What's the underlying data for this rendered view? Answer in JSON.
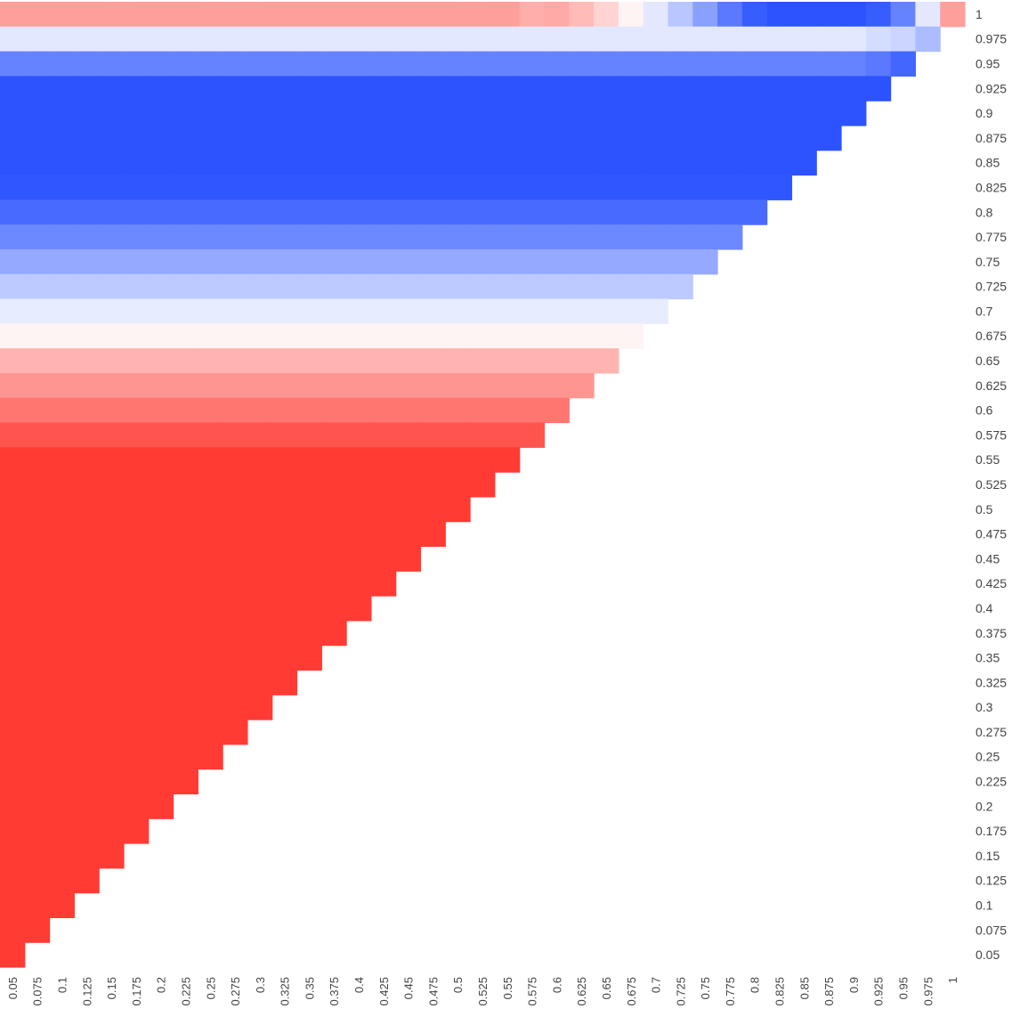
{
  "chart_data": {
    "type": "heatmap",
    "title": "",
    "xlabel": "",
    "ylabel": "",
    "x_ticks": [
      "0.05",
      "0.075",
      "0.1",
      "0.125",
      "0.15",
      "0.175",
      "0.2",
      "0.225",
      "0.25",
      "0.275",
      "0.3",
      "0.325",
      "0.35",
      "0.375",
      "0.4",
      "0.425",
      "0.45",
      "0.475",
      "0.5",
      "0.525",
      "0.55",
      "0.575",
      "0.6",
      "0.625",
      "0.65",
      "0.675",
      "0.7",
      "0.725",
      "0.75",
      "0.775",
      "0.8",
      "0.825",
      "0.85",
      "0.875",
      "0.9",
      "0.925",
      "0.95",
      "0.975",
      "1"
    ],
    "y_ticks": [
      "1",
      "0.975",
      "0.95",
      "0.925",
      "0.9",
      "0.875",
      "0.85",
      "0.825",
      "0.8",
      "0.775",
      "0.75",
      "0.725",
      "0.7",
      "0.675",
      "0.65",
      "0.625",
      "0.6",
      "0.575",
      "0.55",
      "0.525",
      "0.5",
      "0.475",
      "0.45",
      "0.425",
      "0.4",
      "0.375",
      "0.35",
      "0.325",
      "0.3",
      "0.275",
      "0.25",
      "0.225",
      "0.2",
      "0.175",
      "0.15",
      "0.125",
      "0.1",
      "0.075",
      "0.05"
    ],
    "cell_rule": "cell (row y, column x) is filled where x <= y; empty otherwise",
    "row_values": [
      -0.45,
      0.12,
      0.65,
      0.9,
      0.9,
      0.9,
      0.9,
      0.88,
      0.78,
      0.62,
      0.45,
      0.28,
      0.1,
      -0.05,
      -0.35,
      -0.5,
      -0.65,
      -0.8,
      -0.92,
      -0.92,
      -0.92,
      -0.92,
      -0.92,
      -0.92,
      -0.92,
      -0.92,
      -0.92,
      -0.92,
      -0.92,
      -0.92,
      -0.92,
      -0.92,
      -0.92,
      -0.92,
      -0.92,
      -0.92,
      -0.92,
      -0.92,
      -0.92
    ],
    "top_row_values": [
      -0.45,
      -0.45,
      -0.45,
      -0.45,
      -0.45,
      -0.45,
      -0.45,
      -0.45,
      -0.45,
      -0.45,
      -0.45,
      -0.45,
      -0.45,
      -0.45,
      -0.45,
      -0.45,
      -0.45,
      -0.45,
      -0.45,
      -0.45,
      -0.45,
      -0.38,
      -0.4,
      -0.32,
      -0.2,
      -0.05,
      0.12,
      0.3,
      0.5,
      0.7,
      0.85,
      0.9,
      0.9,
      0.9,
      0.9,
      0.85,
      0.65,
      0.12,
      -0.45
    ],
    "second_row_tail": [
      0.18,
      0.22,
      0.35
    ],
    "third_row_tail": [
      0.7,
      0.8
    ],
    "colorscale": {
      "negative": "#ff2a22",
      "zero": "#ffffff",
      "positive": "#1440ff"
    },
    "legend": "none",
    "grid": false
  }
}
